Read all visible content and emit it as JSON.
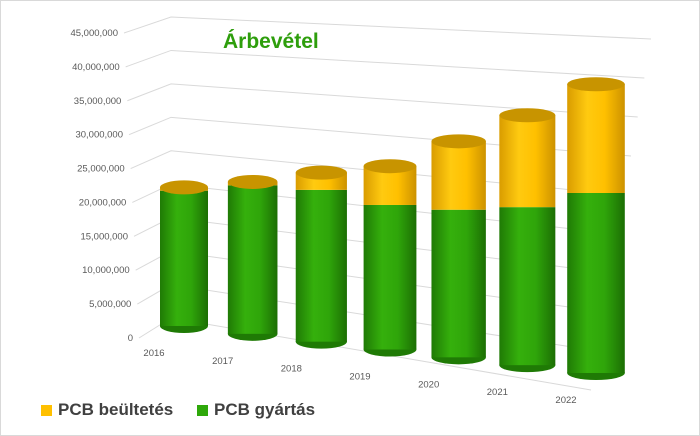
{
  "chart_data": {
    "type": "bar",
    "subtype": "3d-stacked-cylinder",
    "title": "Árbevétel",
    "categories": [
      "2016",
      "2017",
      "2018",
      "2019",
      "2020",
      "2021",
      "2022"
    ],
    "series": [
      {
        "name": "PCB gyártás",
        "color": "#2ea80a",
        "values": [
          20500000,
          22000000,
          22000000,
          20500000,
          20500000,
          21500000,
          24000000
        ]
      },
      {
        "name": "PCB beültetés",
        "color": "#ffc000",
        "values": [
          500000,
          500000,
          2500000,
          5500000,
          9500000,
          12500000,
          14500000
        ]
      }
    ],
    "yticks": [
      "0",
      "5,000,000",
      "10,000,000",
      "15,000,000",
      "20,000,000",
      "25,000,000",
      "30,000,000",
      "35,000,000",
      "40,000,000",
      "45,000,000"
    ],
    "ylim": [
      0,
      45000000
    ],
    "grid": true,
    "legend": "bottom-left",
    "legend_order": [
      "PCB beültetés",
      "PCB gyártás"
    ]
  }
}
